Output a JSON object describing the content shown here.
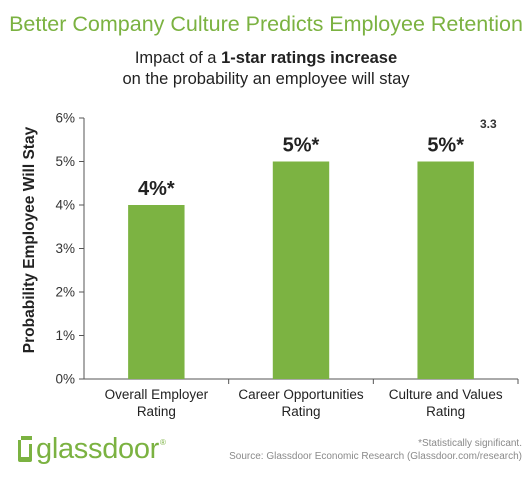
{
  "headline": "Better Company Culture Predicts Employee Retention",
  "subtitle": {
    "line1_prefix": "Impact of a ",
    "line1_bold": "1-star ratings increase",
    "line2": "on the probability an employee will stay"
  },
  "corner_label": "3.3",
  "logo": {
    "text": "glassdoor",
    "tm": "®"
  },
  "footnote": {
    "line1": "*Statistically significant.",
    "line2": "Source: Glassdoor Economic Research (Glassdoor.com/research)"
  },
  "colors": {
    "bar": "#7cb342",
    "accent": "#7bb241",
    "axis": "#555555"
  },
  "chart_data": {
    "type": "bar",
    "title": "Impact of a 1-star ratings increase on the probability an employee will stay",
    "xlabel": "",
    "ylabel": "Probability Employee Will Stay",
    "ylim": [
      0,
      6
    ],
    "yticks": [
      "0%",
      "1%",
      "2%",
      "3%",
      "4%",
      "5%",
      "6%"
    ],
    "categories": [
      [
        "Overall Employer",
        "Rating"
      ],
      [
        "Career Opportunities",
        "Rating"
      ],
      [
        "Culture and Values",
        "Rating"
      ]
    ],
    "values": [
      4,
      5,
      5
    ],
    "data_labels": [
      "4%*",
      "5%*",
      "5%*"
    ],
    "grid": false,
    "legend": "none"
  }
}
